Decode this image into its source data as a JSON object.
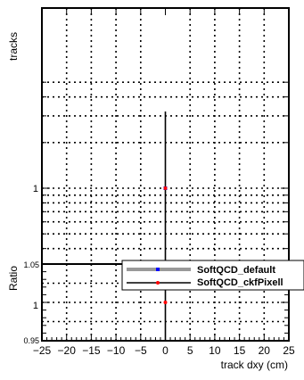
{
  "chart_data": [
    {
      "type": "line",
      "panel": "main",
      "ylabel": "tracks",
      "y_scale": "log",
      "y_tick_labels": [
        "1"
      ],
      "grid": true,
      "x_range": [
        -25,
        25
      ],
      "series": [
        {
          "name": "SoftQCD_default",
          "color": "#0000ff",
          "x": [
            0
          ],
          "y": [
            1
          ]
        },
        {
          "name": "SoftQCD_ckfPixell",
          "color": "#ff0000",
          "x": [
            0
          ],
          "y": [
            1
          ]
        }
      ]
    },
    {
      "type": "line",
      "panel": "ratio",
      "ylabel": "Ratio",
      "xlabel": "track dxy (cm)",
      "ylim": [
        0.95,
        1.05
      ],
      "y_tick_labels": [
        "0.95",
        "1",
        "1.05"
      ],
      "x_tick_labels": [
        "−25",
        "−20",
        "−15",
        "−10",
        "−5",
        "0",
        "5",
        "10",
        "15",
        "20",
        "25"
      ],
      "grid": true,
      "series": [
        {
          "name": "SoftQCD_ckfPixell",
          "color": "#ff0000",
          "x": [
            0
          ],
          "y": [
            1
          ]
        }
      ]
    }
  ],
  "legend": {
    "placement": "top-right of ratio panel",
    "entries": [
      {
        "label": "SoftQCD_default",
        "marker_color": "#0000ff",
        "line_color": "#999999"
      },
      {
        "label": "SoftQCD_ckfPixell",
        "marker_color": "#ff0000",
        "line_color": "#000000"
      }
    ]
  }
}
